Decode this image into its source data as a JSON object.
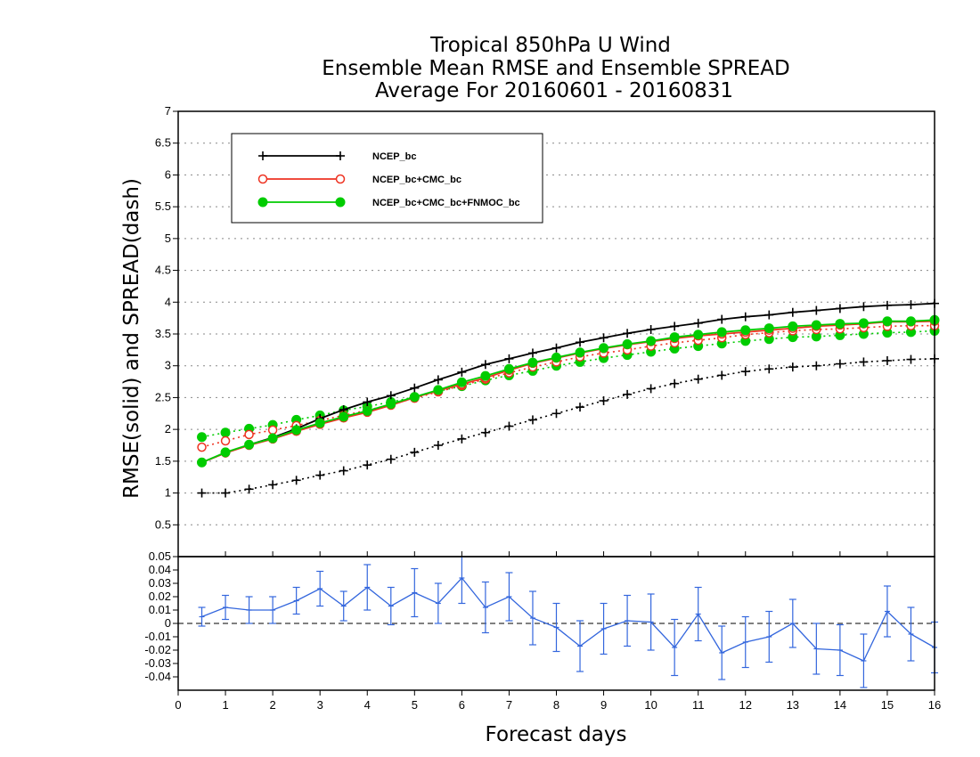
{
  "chart_data": [
    {
      "type": "line",
      "title_lines": [
        "Tropical 850hPa U Wind",
        "Ensemble Mean RMSE and Ensemble SPREAD",
        "Average For 20160601 - 20160831"
      ],
      "xlabel": "Forecast days",
      "ylabel": "RMSE(solid) and SPREAD(dash)",
      "xlim": [
        0,
        16
      ],
      "ylim": [
        0,
        7
      ],
      "xticks": [
        "0",
        "1",
        "2",
        "3",
        "4",
        "5",
        "6",
        "7",
        "8",
        "9",
        "10",
        "11",
        "12",
        "13",
        "14",
        "15",
        "16"
      ],
      "yticks": [
        "0.5",
        "1",
        "1.5",
        "2",
        "2.5",
        "3",
        "3.5",
        "4",
        "4.5",
        "5",
        "5.5",
        "6",
        "6.5",
        "7"
      ],
      "grid": "horizontal dotted",
      "legend_placement": "top-left",
      "x": [
        0.5,
        1,
        1.5,
        2,
        2.5,
        3,
        3.5,
        4,
        4.5,
        5,
        5.5,
        6,
        6.5,
        7,
        7.5,
        8,
        8.5,
        9,
        9.5,
        10,
        10.5,
        11,
        11.5,
        12,
        12.5,
        13,
        13.5,
        14,
        14.5,
        15,
        15.5,
        16
      ],
      "series": [
        {
          "name": "NCEP_bc",
          "color": "#000000",
          "marker": "plus",
          "rmse": [
            1.48,
            1.63,
            1.76,
            1.87,
            2.01,
            2.17,
            2.31,
            2.43,
            2.53,
            2.65,
            2.78,
            2.9,
            3.02,
            3.11,
            3.2,
            3.28,
            3.37,
            3.44,
            3.51,
            3.57,
            3.62,
            3.67,
            3.73,
            3.77,
            3.8,
            3.84,
            3.87,
            3.9,
            3.93,
            3.95,
            3.96,
            3.98
          ],
          "spread": [
            1.0,
            1.0,
            1.06,
            1.13,
            1.2,
            1.28,
            1.35,
            1.44,
            1.53,
            1.64,
            1.75,
            1.85,
            1.95,
            2.05,
            2.15,
            2.25,
            2.35,
            2.45,
            2.55,
            2.64,
            2.72,
            2.79,
            2.85,
            2.91,
            2.95,
            2.98,
            3.0,
            3.03,
            3.06,
            3.08,
            3.1,
            3.11
          ]
        },
        {
          "name": "NCEP_bc+CMC_bc",
          "color": "#ee3322",
          "marker": "open-circle",
          "rmse": [
            1.48,
            1.63,
            1.75,
            1.85,
            1.97,
            2.08,
            2.18,
            2.27,
            2.38,
            2.5,
            2.61,
            2.71,
            2.81,
            2.93,
            3.04,
            3.12,
            3.2,
            3.27,
            3.33,
            3.38,
            3.43,
            3.47,
            3.5,
            3.53,
            3.56,
            3.59,
            3.62,
            3.64,
            3.66,
            3.69,
            3.69,
            3.7
          ],
          "spread": [
            1.72,
            1.82,
            1.92,
            1.99,
            2.06,
            2.14,
            2.22,
            2.3,
            2.39,
            2.49,
            2.59,
            2.69,
            2.79,
            2.89,
            2.98,
            3.06,
            3.14,
            3.2,
            3.25,
            3.31,
            3.36,
            3.4,
            3.44,
            3.49,
            3.52,
            3.55,
            3.57,
            3.58,
            3.6,
            3.62,
            3.63,
            3.63
          ]
        },
        {
          "name": "NCEP_bc+CMC_bc+FNMOC_bc",
          "color": "#00cc00",
          "marker": "filled-circle",
          "rmse": [
            1.48,
            1.64,
            1.76,
            1.86,
            1.99,
            2.1,
            2.2,
            2.29,
            2.4,
            2.51,
            2.62,
            2.74,
            2.84,
            2.95,
            3.05,
            3.13,
            3.21,
            3.28,
            3.34,
            3.39,
            3.45,
            3.49,
            3.53,
            3.56,
            3.59,
            3.62,
            3.64,
            3.66,
            3.67,
            3.7,
            3.7,
            3.72
          ],
          "spread": [
            1.88,
            1.95,
            2.01,
            2.07,
            2.15,
            2.22,
            2.3,
            2.36,
            2.43,
            2.51,
            2.6,
            2.68,
            2.77,
            2.85,
            2.92,
            3.0,
            3.06,
            3.12,
            3.17,
            3.22,
            3.27,
            3.31,
            3.35,
            3.39,
            3.42,
            3.45,
            3.46,
            3.48,
            3.5,
            3.52,
            3.53,
            3.55
          ]
        }
      ]
    },
    {
      "type": "line",
      "description_free": true,
      "xlim": [
        0,
        16
      ],
      "ylim": [
        -0.05,
        0.05
      ],
      "yticks": [
        "0.05",
        "0.04",
        "0.03",
        "0.02",
        "0.01",
        "0",
        "-0.01",
        "-0.02",
        "-0.03",
        "-0.04"
      ],
      "xticks": [
        "0",
        "1",
        "2",
        "3",
        "4",
        "5",
        "6",
        "7",
        "8",
        "9",
        "10",
        "11",
        "12",
        "13",
        "14",
        "15",
        "16"
      ],
      "color": "#3366dd",
      "zero_line": "dashed",
      "x": [
        0.5,
        1,
        1.5,
        2,
        2.5,
        3,
        3.5,
        4,
        4.5,
        5,
        5.5,
        6,
        6.5,
        7,
        7.5,
        8,
        8.5,
        9,
        9.5,
        10,
        10.5,
        11,
        11.5,
        12,
        12.5,
        13,
        13.5,
        14,
        14.5,
        15,
        15.5,
        16
      ],
      "values": [
        0.005,
        0.012,
        0.01,
        0.01,
        0.017,
        0.026,
        0.013,
        0.027,
        0.013,
        0.023,
        0.015,
        0.034,
        0.012,
        0.02,
        0.004,
        -0.003,
        -0.017,
        -0.004,
        0.002,
        0.001,
        -0.018,
        0.007,
        -0.022,
        -0.014,
        -0.01,
        0.0,
        -0.019,
        -0.02,
        -0.028,
        0.009,
        -0.008,
        -0.018
      ],
      "error": [
        0.007,
        0.009,
        0.01,
        0.01,
        0.01,
        0.013,
        0.011,
        0.017,
        0.014,
        0.018,
        0.015,
        0.019,
        0.019,
        0.018,
        0.02,
        0.018,
        0.019,
        0.019,
        0.019,
        0.021,
        0.021,
        0.02,
        0.02,
        0.019,
        0.019,
        0.018,
        0.019,
        0.019,
        0.02,
        0.019,
        0.02,
        0.019
      ]
    }
  ]
}
